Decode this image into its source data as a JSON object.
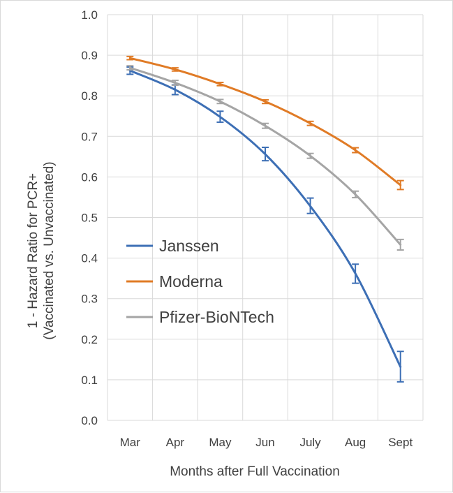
{
  "chart_data": {
    "type": "line",
    "title": "",
    "xlabel": "Months after Full Vaccination",
    "ylabel": [
      "1 - Hazard Ratio for PCR+",
      "(Vaccinated vs. Unvaccinated)"
    ],
    "categories": [
      "Mar",
      "Apr",
      "May",
      "Jun",
      "July",
      "Aug",
      "Sept"
    ],
    "ylim": [
      0,
      1.0
    ],
    "yticks": [
      "0.0",
      "0.1",
      "0.2",
      "0.3",
      "0.4",
      "0.5",
      "0.6",
      "0.7",
      "0.8",
      "0.9",
      "1.0"
    ],
    "grid": true,
    "legend_position": "left-center",
    "series": [
      {
        "name": "Janssen",
        "color": "#3d6fb5",
        "values": [
          0.862,
          0.815,
          0.748,
          0.656,
          0.528,
          0.362,
          0.132
        ],
        "err_low": [
          0.853,
          0.803,
          0.735,
          0.64,
          0.51,
          0.338,
          0.095
        ],
        "err_high": [
          0.871,
          0.827,
          0.762,
          0.673,
          0.548,
          0.385,
          0.17
        ]
      },
      {
        "name": "Moderna",
        "color": "#e07b26",
        "values": [
          0.893,
          0.865,
          0.829,
          0.786,
          0.732,
          0.666,
          0.58
        ],
        "err_low": [
          0.889,
          0.861,
          0.825,
          0.781,
          0.727,
          0.66,
          0.569
        ],
        "err_high": [
          0.897,
          0.869,
          0.833,
          0.79,
          0.737,
          0.672,
          0.591
        ]
      },
      {
        "name": "Pfizer-BioNTech",
        "color": "#a5a5a5",
        "values": [
          0.869,
          0.832,
          0.786,
          0.726,
          0.652,
          0.557,
          0.433
        ],
        "err_low": [
          0.864,
          0.826,
          0.781,
          0.72,
          0.646,
          0.549,
          0.42
        ],
        "err_high": [
          0.874,
          0.838,
          0.791,
          0.732,
          0.658,
          0.565,
          0.446
        ]
      }
    ]
  }
}
